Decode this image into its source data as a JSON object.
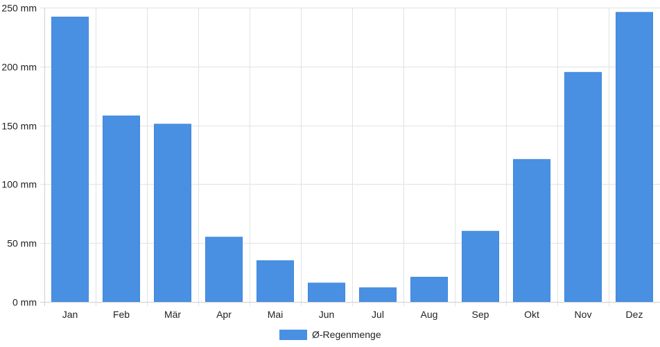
{
  "chart_data": {
    "type": "bar",
    "categories": [
      "Jan",
      "Feb",
      "Mär",
      "Apr",
      "Mai",
      "Jun",
      "Jul",
      "Aug",
      "Sep",
      "Okt",
      "Nov",
      "Dez"
    ],
    "series": [
      {
        "name": "Ø-Regenmenge",
        "values": [
          242,
          158,
          151,
          55,
          35,
          16,
          12,
          21,
          60,
          121,
          195,
          246
        ],
        "color": "#4a90e2"
      }
    ],
    "ylim": [
      0,
      250
    ],
    "y_ticks": [
      0,
      50,
      100,
      150,
      200,
      250
    ],
    "y_tick_suffix": " mm",
    "grid": true,
    "legend_position": "bottom-center"
  }
}
